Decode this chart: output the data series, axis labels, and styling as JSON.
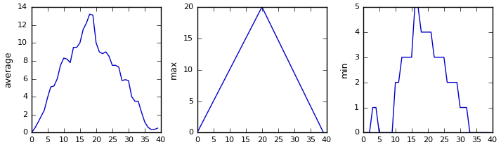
{
  "avg_y": [
    0.0,
    0.45,
    1.1,
    1.8,
    2.5,
    3.9,
    5.1,
    5.2,
    6.0,
    7.5,
    8.3,
    8.2,
    7.8,
    9.5,
    9.5,
    10.0,
    11.5,
    12.2,
    13.2,
    13.1,
    10.0,
    9.0,
    8.8,
    9.0,
    8.5,
    7.5,
    7.5,
    7.3,
    5.8,
    5.9,
    5.8,
    4.0,
    3.5,
    3.5,
    2.3,
    1.2,
    0.6,
    0.35,
    0.35,
    0.5
  ],
  "max_y": [
    0.0,
    1.0,
    2.0,
    3.0,
    4.0,
    5.0,
    6.0,
    7.0,
    8.0,
    9.0,
    10.0,
    11.0,
    12.0,
    13.0,
    14.0,
    15.0,
    16.0,
    17.0,
    18.0,
    19.0,
    20.0,
    18.95,
    17.9,
    16.84,
    15.79,
    14.74,
    13.68,
    12.63,
    11.58,
    10.53,
    9.47,
    8.42,
    7.37,
    6.32,
    5.26,
    4.21,
    3.16,
    2.11,
    1.05,
    0.0
  ],
  "min_y": [
    0,
    0,
    0,
    1,
    1,
    0,
    0,
    0,
    0,
    0,
    2,
    2,
    3,
    3,
    3,
    3,
    5,
    5,
    4,
    4,
    4,
    4,
    3,
    3,
    3,
    3,
    2,
    2,
    2,
    2,
    1,
    1,
    1,
    0,
    0,
    0,
    0,
    0,
    0,
    0
  ],
  "line_color": "#0000cc",
  "fig_width": 7.13,
  "fig_height": 2.1,
  "dpi": 100,
  "avg_ylabel": "average",
  "max_ylabel": "max",
  "min_ylabel": "min",
  "xlim": [
    0,
    40
  ],
  "avg_ylim": [
    0,
    14
  ],
  "max_ylim": [
    0,
    20
  ],
  "min_ylim": [
    0,
    5
  ],
  "style": "classic"
}
